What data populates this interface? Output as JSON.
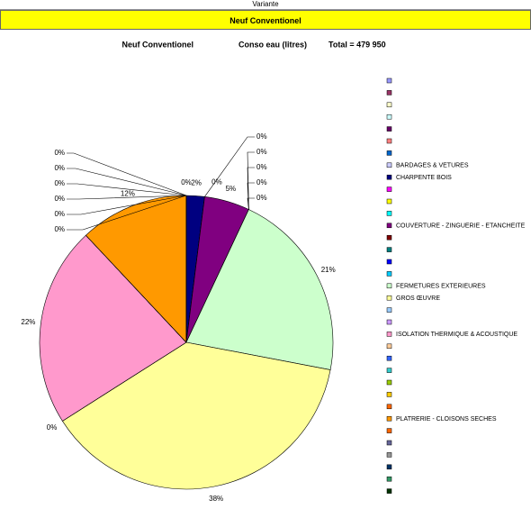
{
  "header": {
    "sheet": "Variante",
    "banner": "Neuf Conventionel"
  },
  "chart_data": {
    "type": "pie",
    "title": [
      "Neuf Conventionel",
      "Conso eau (litres)",
      "Total = 479 950"
    ],
    "categories": [
      null,
      null,
      null,
      null,
      null,
      null,
      null,
      "BARDAGES & VETURES",
      "CHARPENTE BOIS",
      null,
      null,
      null,
      "COUVERTURE - ZINGUERIE - ETANCHEITE",
      null,
      null,
      null,
      null,
      "FERMETURES EXTERIEURES",
      "GROS ŒUVRE",
      null,
      null,
      "ISOLATION THERMIQUE & ACOUSTIQUE",
      null,
      null,
      null,
      null,
      null,
      null,
      "PLATRERIE - CLOISONS SECHES",
      null,
      null,
      null,
      null,
      null,
      null
    ],
    "values": [
      0,
      0,
      0,
      0,
      0,
      0,
      0,
      0,
      2,
      0,
      0,
      0,
      5,
      0,
      0,
      0,
      0,
      21,
      38,
      0,
      0,
      22,
      0,
      0,
      0,
      0,
      0,
      0,
      12,
      0,
      0,
      0,
      0,
      0,
      0
    ],
    "value_labels": [
      null,
      null,
      null,
      null,
      null,
      null,
      null,
      "0%",
      "2%",
      "0%",
      "0%",
      null,
      "5%",
      "0%",
      "0%",
      "0%",
      "0%",
      "21%",
      "38%",
      null,
      "0%",
      "22%",
      null,
      null,
      null,
      null,
      null,
      null,
      "12%",
      "0%",
      "0%",
      "0%",
      "0%",
      "0%",
      "0%"
    ],
    "colors": [
      "#9999ff",
      "#993366",
      "#ffffcc",
      "#ccffff",
      "#660066",
      "#ff8080",
      "#0066cc",
      "#ccccff",
      "#000080",
      "#ff00ff",
      "#ffff00",
      "#00ffff",
      "#800080",
      "#800000",
      "#008080",
      "#0000ff",
      "#00ccff",
      "#ccffcc",
      "#ffff99",
      "#99ccff",
      "#cc99ff",
      "#ff99cc",
      "#ffcc99",
      "#3366ff",
      "#33cccc",
      "#99cc00",
      "#ffcc00",
      "#ff6600",
      "#ff9900",
      "#ff6600",
      "#666699",
      "#969696",
      "#003366",
      "#339966",
      "#003300"
    ]
  }
}
